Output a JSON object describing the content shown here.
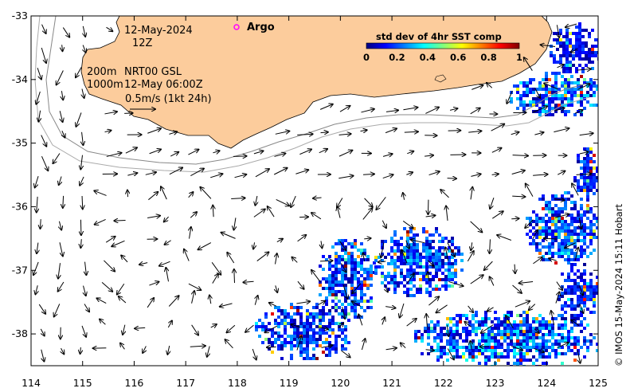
{
  "map": {
    "date_label": "12-May-2024",
    "time_label": "12Z",
    "legend_contour_a": "200m",
    "legend_contour_b": "1000m",
    "legend_source": "NRT00 GSL",
    "legend_source_time": "12-May 06:00Z",
    "legend_scale_vector": "0.5m/s (1kt 24h)",
    "argo_label": "Argo",
    "credit": "© IMOS 15-May-2024 15:11 Hobart",
    "land_color": "#fccc9c",
    "argo_marker_color": "#ff00ff",
    "colorbar": {
      "title": "std dev of 4hr SST comp",
      "ticks": [
        "0",
        "0.2",
        "0.4",
        "0.6",
        "0.8",
        "1"
      ],
      "colormap": "jet"
    },
    "x_axis": {
      "ticks": [
        "114",
        "115",
        "116",
        "117",
        "118",
        "119",
        "120",
        "121",
        "122",
        "123",
        "124",
        "125"
      ],
      "range": [
        114,
        125
      ]
    },
    "y_axis": {
      "ticks": [
        "-33",
        "-34",
        "-35",
        "-36",
        "-37",
        "-38"
      ],
      "range": [
        -38.5,
        -33
      ]
    }
  }
}
